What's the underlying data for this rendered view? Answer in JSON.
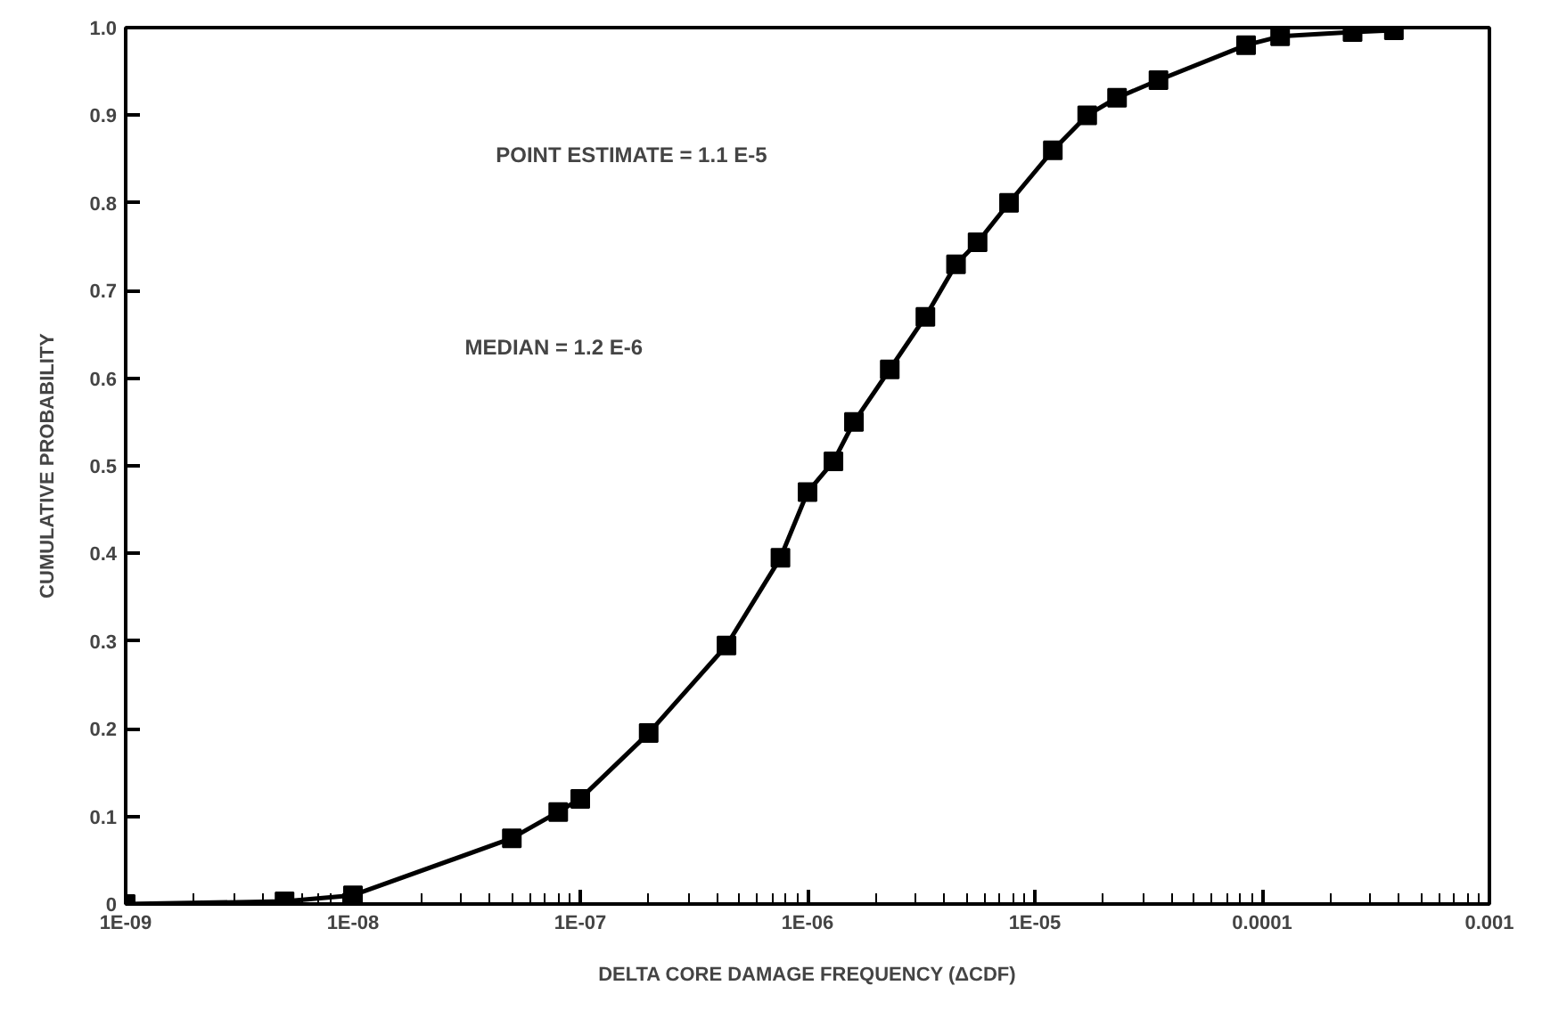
{
  "chart_data": {
    "type": "line",
    "xlabel": "DELTA CORE DAMAGE FREQUENCY (ΔCDF)",
    "ylabel": "CUMULATIVE PROBABILITY",
    "log": "x",
    "marker": "square",
    "line_style": "solid",
    "grid": false,
    "x": [
      1e-09,
      5e-09,
      1e-08,
      5e-08,
      8e-08,
      1e-07,
      2e-07,
      4.4e-07,
      7.6e-07,
      1e-06,
      1.3e-06,
      1.6e-06,
      2.3e-06,
      3.3e-06,
      4.5e-06,
      5.6e-06,
      7.7e-06,
      1.2e-05,
      1.7e-05,
      2.3e-05,
      3.5e-05,
      8.5e-05,
      0.00012,
      0.00025,
      0.00038
    ],
    "series": [
      {
        "color": "#000000",
        "values": [
          0,
          0.003,
          0.01,
          0.075,
          0.105,
          0.12,
          0.195,
          0.295,
          0.395,
          0.47,
          0.505,
          0.55,
          0.61,
          0.67,
          0.73,
          0.755,
          0.8,
          0.86,
          0.9,
          0.92,
          0.94,
          0.98,
          0.99,
          0.995,
          0.997
        ]
      }
    ],
    "xlim": [
      1e-09,
      0.001
    ],
    "xticks": [
      {
        "value": 1e-09,
        "label": "1E-09"
      },
      {
        "value": 1e-08,
        "label": "1E-08"
      },
      {
        "value": 1e-07,
        "label": "1E-07"
      },
      {
        "value": 1e-06,
        "label": "1E-06"
      },
      {
        "value": 1e-05,
        "label": "1E-05"
      },
      0.0001,
      0.001
    ],
    "ylim": [
      0,
      1
    ],
    "yticks": [
      0,
      0.1,
      0.2,
      0.3,
      0.4,
      0.5,
      0.6,
      0.7,
      0.8,
      0.9,
      {
        "value": 1,
        "label": "1.0"
      }
    ],
    "annotations": [
      "POINT ESTIMATE = 1.1 E-5",
      "MEDIAN = 1.2 E-6"
    ]
  }
}
